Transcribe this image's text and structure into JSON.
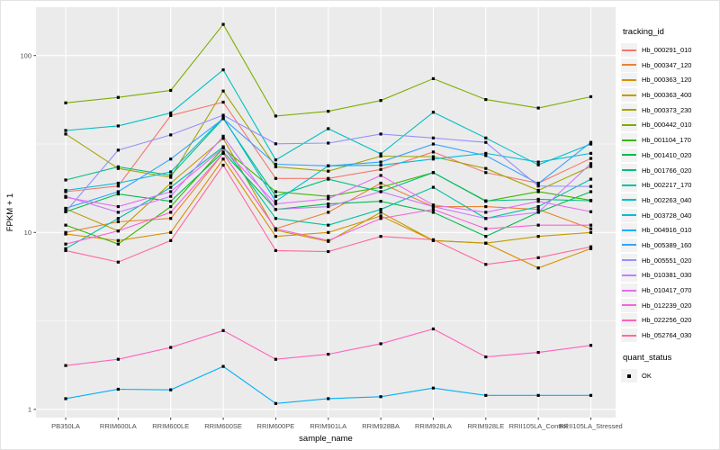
{
  "figure": {
    "bg": "#FFFFFF",
    "panel_bg": "#EBEBEB",
    "grid_color": "#FFFFFF",
    "tick_text_color": "#4D4D4D",
    "axis_title_color": "#000000",
    "point_color": "#000000"
  },
  "chart_data": {
    "type": "line",
    "title": "",
    "xlabel": "sample_name",
    "ylabel": "FPKM + 1",
    "yscale": "log10",
    "ylim": [
      1,
      200
    ],
    "yticks": [
      1,
      10,
      100
    ],
    "ytick_labels": [
      "1",
      "10",
      "100"
    ],
    "minor_gridlines": [
      3.1623,
      31.623
    ],
    "grid": "on",
    "legend_position": "right",
    "point_marker": "filled-black-square",
    "categories": [
      "PB350LA",
      "RRIM600LA",
      "RRIM600LE",
      "RRIM600SE",
      "RRIM600PE",
      "RRIM901LA",
      "RRIM928BA",
      "RRIM928LA",
      "RRIM928LE",
      "RRII105LA_Control",
      "RRII105LA_Stressed"
    ],
    "legend": {
      "title": "tracking_id"
    },
    "legend2": {
      "title": "quant_status",
      "items": [
        {
          "label": "OK",
          "marker": "filled-black-square"
        }
      ]
    },
    "series": [
      {
        "name": "Hb_000291_010",
        "color": "#F8766D",
        "values": [
          17.0,
          18.3,
          45.8,
          54.5,
          20.2,
          20.2,
          22.7,
          28.5,
          21.8,
          19.0,
          26.2
        ]
      },
      {
        "name": "Hb_000347_120",
        "color": "#EA8331",
        "values": [
          10.0,
          11.5,
          12.0,
          28.0,
          10.5,
          13.0,
          19.0,
          14.0,
          14.0,
          13.5,
          10.5
        ]
      },
      {
        "name": "Hb_000363_120",
        "color": "#D89000",
        "values": [
          9.8,
          9.0,
          10.0,
          26.0,
          9.5,
          10.0,
          12.4,
          9.0,
          8.7,
          6.3,
          8.1
        ]
      },
      {
        "name": "Hb_000363_400",
        "color": "#C09B00",
        "values": [
          13.6,
          10.2,
          19.0,
          34.0,
          10.3,
          8.9,
          13.0,
          9.0,
          8.7,
          9.5,
          10.0
        ]
      },
      {
        "name": "Hb_000373_230",
        "color": "#A3A500",
        "values": [
          36.0,
          23.0,
          20.5,
          63.0,
          23.5,
          22.2,
          27.0,
          26.8,
          23.0,
          17.3,
          23.6
        ]
      },
      {
        "name": "Hb_000442_010",
        "color": "#7CAE00",
        "values": [
          54.0,
          58.0,
          63.5,
          150.0,
          45.5,
          48.4,
          55.7,
          74.0,
          56.4,
          50.5,
          58.5
        ]
      },
      {
        "name": "Hb_001104_170",
        "color": "#39B600",
        "values": [
          11.0,
          8.6,
          14.0,
          30.0,
          17.0,
          16.0,
          18.0,
          21.8,
          15.0,
          17.0,
          15.2
        ]
      },
      {
        "name": "Hb_001410_020",
        "color": "#00BB4E",
        "values": [
          13.1,
          16.5,
          15.0,
          28.5,
          13.5,
          14.5,
          15.0,
          13.0,
          9.5,
          13.0,
          17.0
        ]
      },
      {
        "name": "Hb_001766_020",
        "color": "#00BF7D",
        "values": [
          19.8,
          23.5,
          21.0,
          44.0,
          16.0,
          20.0,
          17.0,
          21.8,
          15.1,
          15.4,
          15.1
        ]
      },
      {
        "name": "Hb_002217_170",
        "color": "#00C1A3",
        "values": [
          8.1,
          12.0,
          18.0,
          30.5,
          12.0,
          11.0,
          13.5,
          18.0,
          12.0,
          14.0,
          20.0
        ]
      },
      {
        "name": "Hb_002263_040",
        "color": "#00BFC4",
        "values": [
          37.7,
          40.0,
          47.4,
          83.0,
          25.7,
          38.6,
          27.8,
          47.8,
          34.2,
          24.1,
          31.6
        ]
      },
      {
        "name": "Hb_003728_040",
        "color": "#00BBDA",
        "values": [
          17.3,
          19.0,
          22.0,
          44.6,
          15.0,
          23.8,
          24.0,
          26.0,
          28.0,
          25.0,
          28.0
        ]
      },
      {
        "name": "Hb_004916_010",
        "color": "#00B0F6",
        "values": [
          1.15,
          1.3,
          1.29,
          1.75,
          1.08,
          1.15,
          1.18,
          1.32,
          1.2,
          1.2,
          1.2
        ]
      },
      {
        "name": "Hb_005389_160",
        "color": "#35A2FF",
        "values": [
          13.7,
          17.0,
          26.0,
          44.0,
          24.3,
          23.8,
          25.0,
          31.6,
          27.2,
          18.9,
          32.3
        ]
      },
      {
        "name": "Hb_005551_020",
        "color": "#9590FF",
        "values": [
          13.1,
          29.2,
          35.6,
          46.0,
          31.7,
          32.0,
          36.0,
          34.2,
          32.3,
          18.3,
          18.2
        ]
      },
      {
        "name": "Hb_010381_030",
        "color": "#C77CFF",
        "values": [
          16.0,
          13.0,
          16.0,
          35.0,
          13.5,
          14.0,
          17.0,
          14.0,
          12.0,
          13.0,
          24.5
        ]
      },
      {
        "name": "Hb_010417_070",
        "color": "#E76BF3",
        "values": [
          15.8,
          14.0,
          17.0,
          30.0,
          14.5,
          15.5,
          21.0,
          14.3,
          13.0,
          15.0,
          13.1
        ]
      },
      {
        "name": "Hb_012239_020",
        "color": "#FA62DB",
        "values": [
          8.6,
          10.2,
          13.0,
          28.0,
          10.5,
          9.0,
          12.0,
          13.5,
          10.5,
          11.0,
          11.0
        ]
      },
      {
        "name": "Hb_022256_020",
        "color": "#FF62BC",
        "values": [
          1.77,
          1.92,
          2.24,
          2.79,
          1.92,
          2.05,
          2.35,
          2.85,
          1.98,
          2.1,
          2.3
        ]
      },
      {
        "name": "Hb_052764_030",
        "color": "#FF6A98",
        "values": [
          7.9,
          6.8,
          9.0,
          24.0,
          7.9,
          7.8,
          9.5,
          9.1,
          6.6,
          7.2,
          8.3
        ]
      }
    ]
  }
}
